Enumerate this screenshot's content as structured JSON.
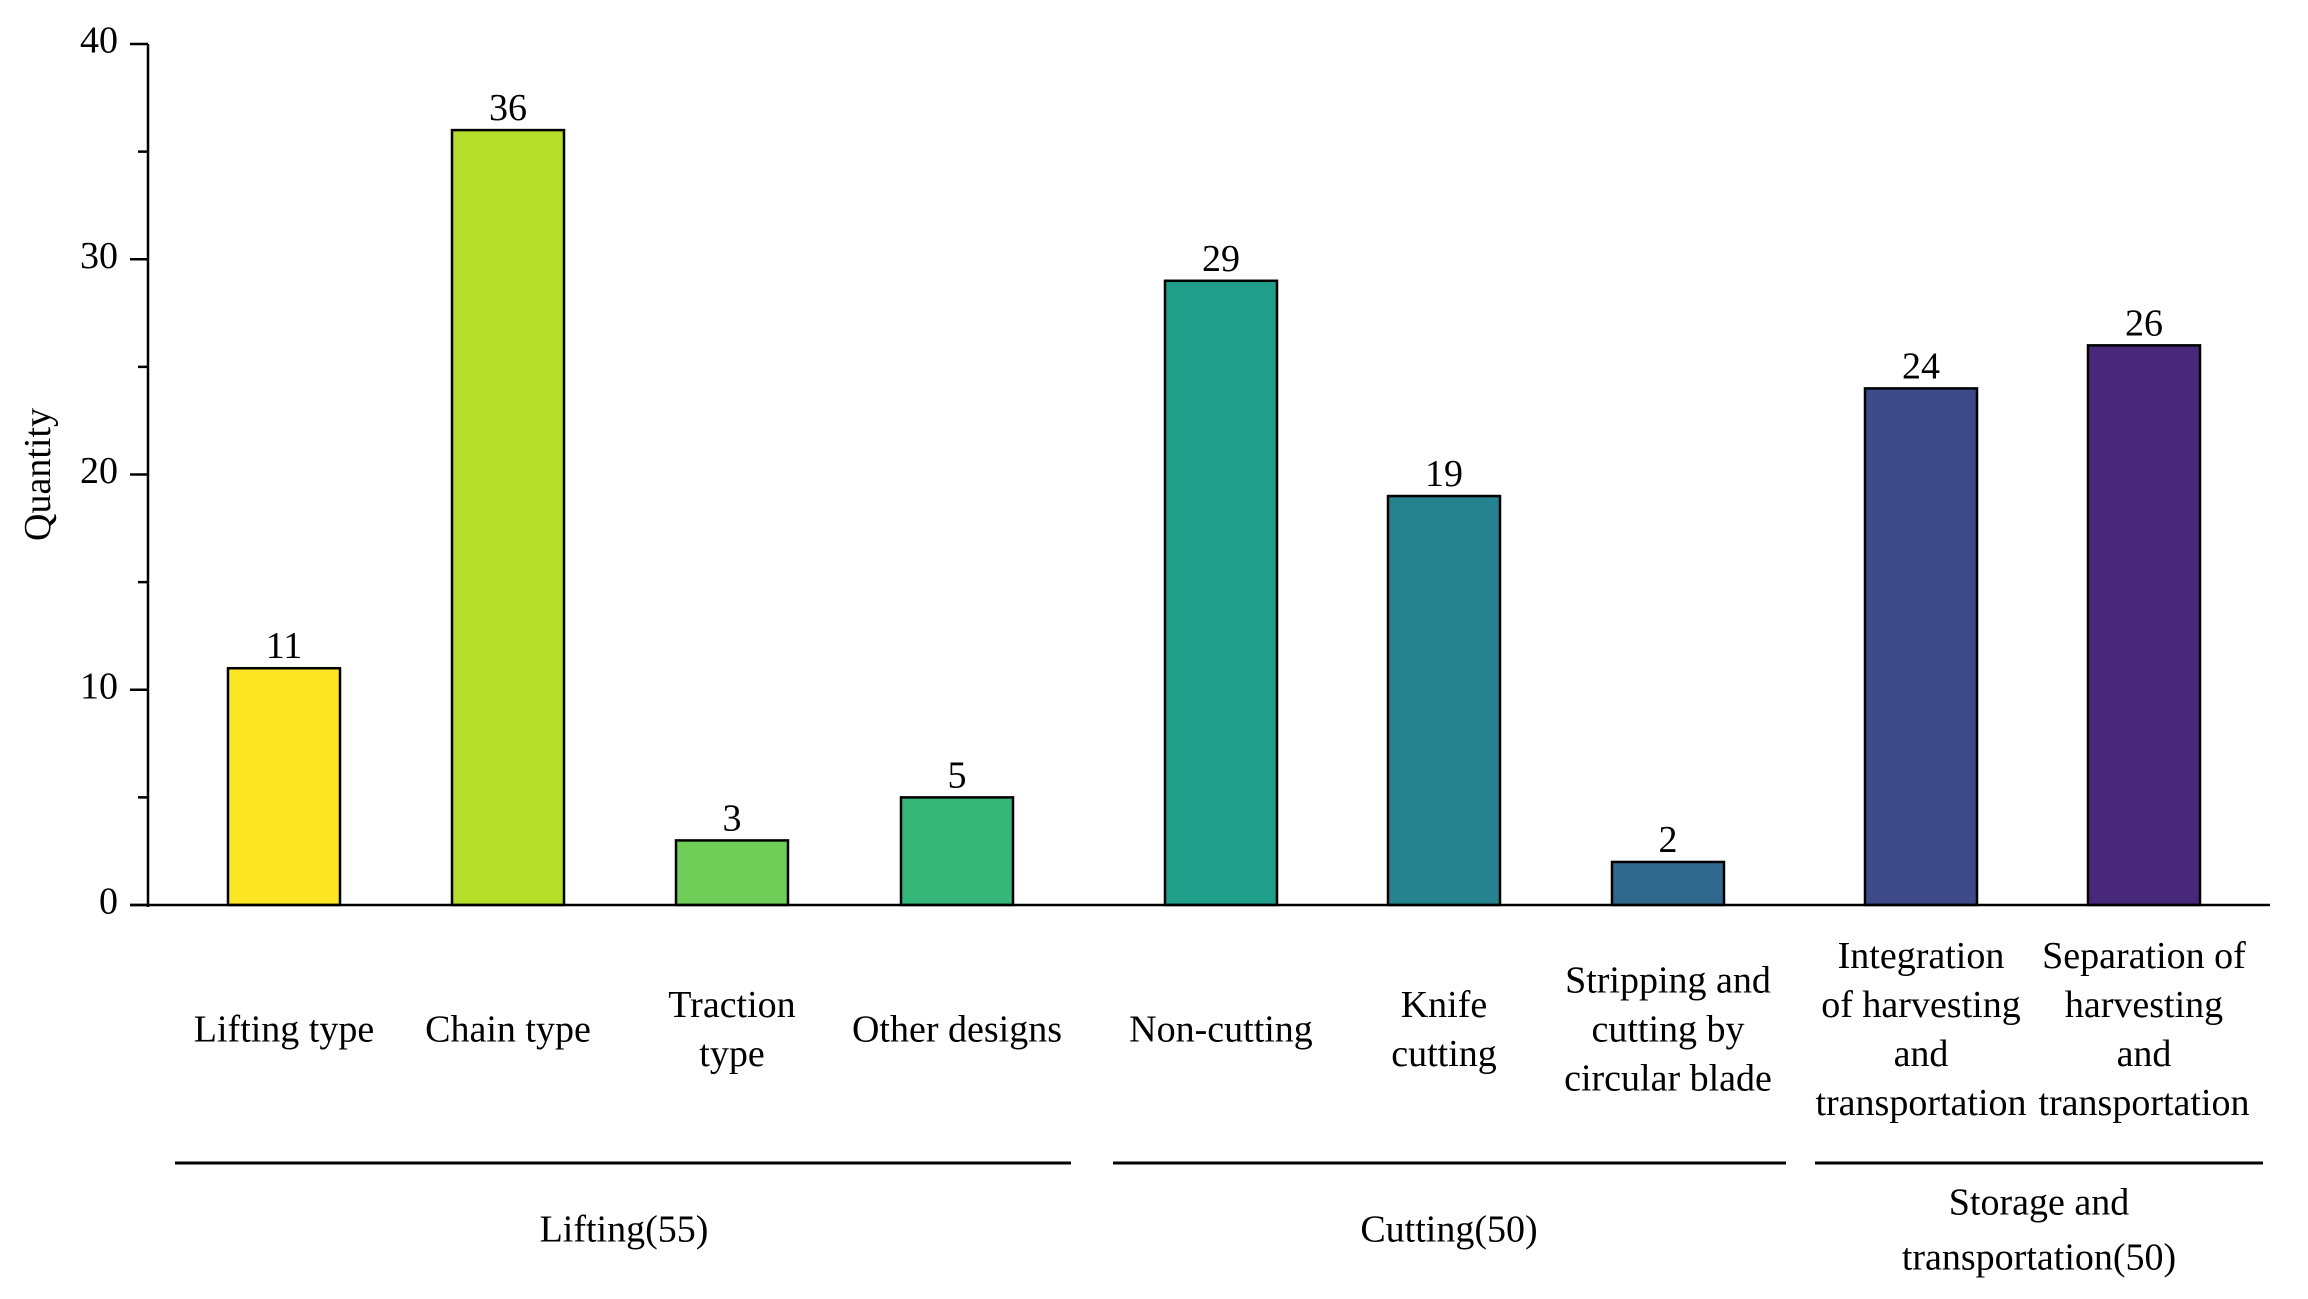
{
  "chart_data": {
    "type": "bar",
    "ylabel": "Quantity",
    "ylim": [
      0,
      40
    ],
    "yticks": [
      "0",
      "10",
      "20",
      "30",
      "40"
    ],
    "categories": [
      {
        "label": [
          "Lifting type"
        ],
        "value": 11,
        "color": "#fde725"
      },
      {
        "label": [
          "Chain type"
        ],
        "value": 36,
        "color": "#b5de2b"
      },
      {
        "label": [
          "Traction",
          "type"
        ],
        "value": 3,
        "color": "#6ece58"
      },
      {
        "label": [
          "Other designs"
        ],
        "value": 5,
        "color": "#35b779"
      },
      {
        "label": [
          "Non-cutting"
        ],
        "value": 29,
        "color": "#1f9e89"
      },
      {
        "label": [
          "Knife",
          "cutting"
        ],
        "value": 19,
        "color": "#26828e"
      },
      {
        "label": [
          "Stripping and",
          "cutting by",
          "circular blade"
        ],
        "value": 2,
        "color": "#31688e"
      },
      {
        "label": [
          "Integration",
          "of harvesting",
          "and",
          "transportation"
        ],
        "value": 24,
        "color": "#3e4989"
      },
      {
        "label": [
          "Separation of",
          "harvesting",
          "and",
          "transportation"
        ],
        "value": 26,
        "color": "#482878"
      }
    ],
    "groups": [
      {
        "label": [
          "Lifting(55)"
        ],
        "first": 0,
        "last": 3
      },
      {
        "label": [
          "Cutting(50)"
        ],
        "first": 4,
        "last": 6
      },
      {
        "label": [
          "Storage and",
          "transportation(50)"
        ],
        "first": 7,
        "last": 8
      }
    ]
  }
}
